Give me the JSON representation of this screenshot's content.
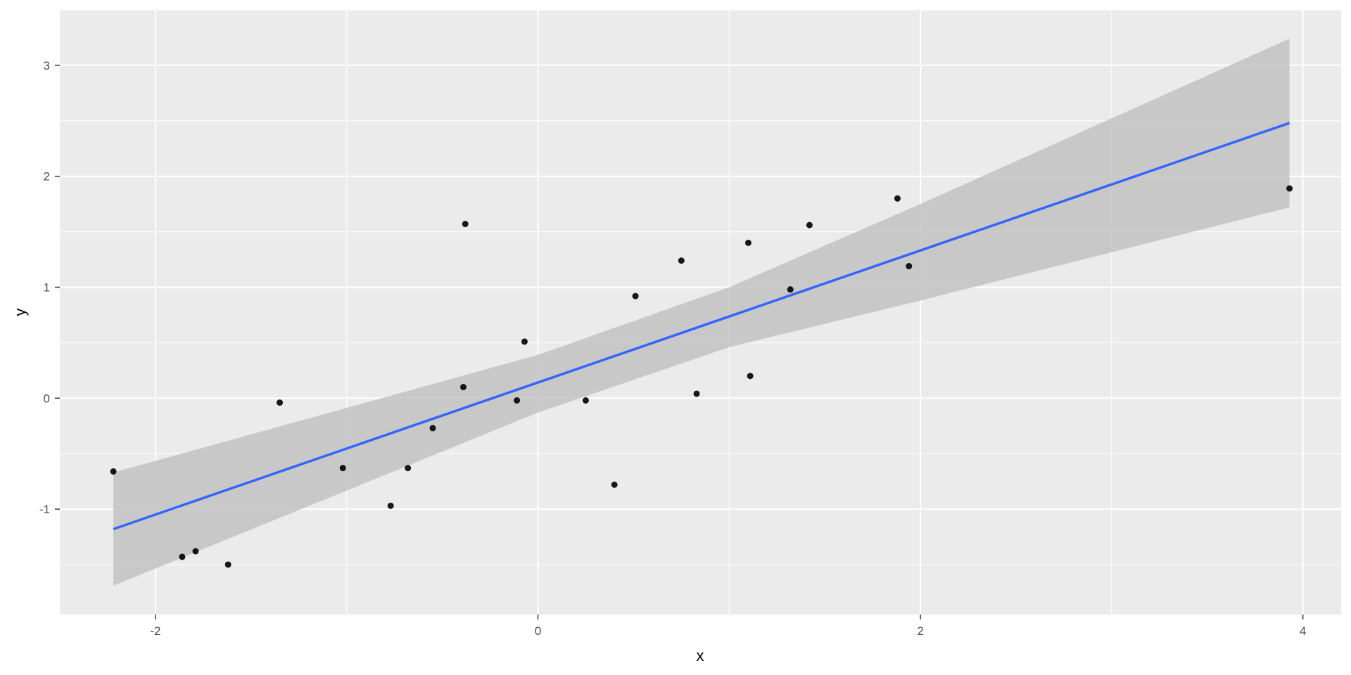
{
  "chart_data": {
    "type": "scatter",
    "xlabel": "x",
    "ylabel": "y",
    "xlim": [
      -2.5,
      4.2
    ],
    "ylim": [
      -1.95,
      3.5
    ],
    "x_ticks": [
      -2,
      0,
      2,
      4
    ],
    "y_ticks": [
      -1,
      0,
      1,
      2,
      3
    ],
    "grid": true,
    "legend": "none",
    "colors": {
      "panel": "#ebebeb",
      "grid": "#ffffff",
      "point": "#000000",
      "fit_line": "#3366ff",
      "ribbon": "#c2c2c2"
    },
    "points": [
      {
        "x": -2.22,
        "y": -0.66
      },
      {
        "x": -1.86,
        "y": -1.43
      },
      {
        "x": -1.79,
        "y": -1.38
      },
      {
        "x": -1.62,
        "y": -1.5
      },
      {
        "x": -1.35,
        "y": -0.04
      },
      {
        "x": -1.02,
        "y": -0.63
      },
      {
        "x": -0.77,
        "y": -0.97
      },
      {
        "x": -0.68,
        "y": -0.63
      },
      {
        "x": -0.55,
        "y": -0.27
      },
      {
        "x": -0.39,
        "y": 0.1
      },
      {
        "x": -0.38,
        "y": 1.57
      },
      {
        "x": -0.11,
        "y": -0.02
      },
      {
        "x": -0.07,
        "y": 0.51
      },
      {
        "x": 0.25,
        "y": -0.02
      },
      {
        "x": 0.4,
        "y": -0.78
      },
      {
        "x": 0.51,
        "y": 0.92
      },
      {
        "x": 0.75,
        "y": 1.24
      },
      {
        "x": 0.83,
        "y": 0.04
      },
      {
        "x": 1.1,
        "y": 1.4
      },
      {
        "x": 1.11,
        "y": 0.2
      },
      {
        "x": 1.32,
        "y": 0.98
      },
      {
        "x": 1.42,
        "y": 1.56
      },
      {
        "x": 1.88,
        "y": 1.8
      },
      {
        "x": 1.94,
        "y": 1.19
      },
      {
        "x": 3.93,
        "y": 1.89
      }
    ],
    "fit": {
      "method": "lm",
      "x_range": [
        -2.22,
        3.93
      ],
      "samples": [
        {
          "x": -2.22,
          "y": -1.18,
          "lower": -1.69,
          "upper": -0.67
        },
        {
          "x": 0.0,
          "y": 0.13,
          "lower": -0.13,
          "upper": 0.39
        },
        {
          "x": 1.0,
          "y": 0.72,
          "lower": 0.46,
          "upper": 1.0
        },
        {
          "x": 2.0,
          "y": 1.31,
          "lower": 0.88,
          "upper": 1.75
        },
        {
          "x": 3.93,
          "y": 2.48,
          "lower": 1.72,
          "upper": 3.24
        }
      ]
    }
  }
}
